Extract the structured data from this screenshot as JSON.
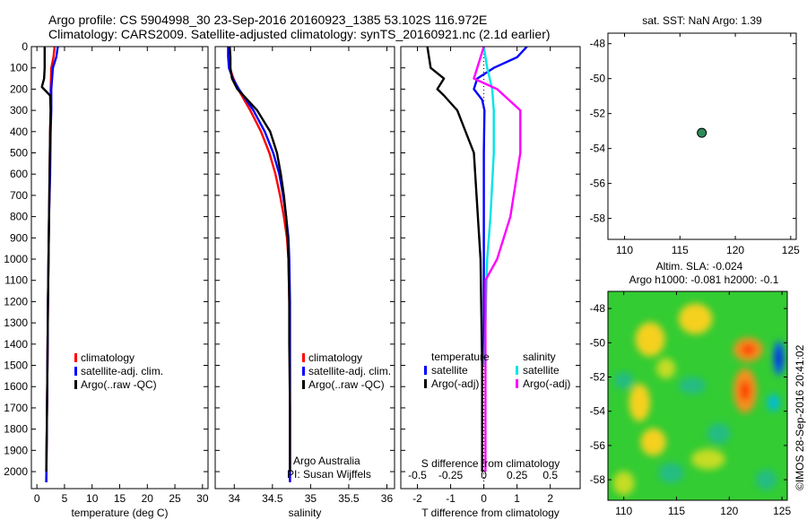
{
  "header": {
    "line1": "Argo profile: CS 5904998_30 23-Sep-2016 20160923_1385 53.102S 116.972E",
    "line2": "Climatology: CARS2009. Satellite-adjusted climatology: synTS_20160921.nc (2.1d earlier)"
  },
  "sst_label": "sat. SST: NaN  Argo: 1.39",
  "altim_label1": "Altim. SLA: -0.024",
  "altim_label2": "Argo h1000: -0.081  h2000: -0.1",
  "credit_vertical": "©IMOS 28-Sep-2016 20:41:02",
  "institution": "Argo Australia",
  "pi": "PI: Susan Wijffels",
  "colors": {
    "climatology": "#ff0000",
    "satellite": "#0000ff",
    "argo": "#000000",
    "s_satellite": "#00e5e5",
    "s_argo": "#ff00ff",
    "marker": "#2e8b57"
  },
  "legend_panel": [
    "climatology",
    "satellite-adj. clim.",
    "Argo(..raw -QC)"
  ],
  "legend_diff": {
    "temp_title": "temperature",
    "sal_title": "salinity",
    "satellite": "satellite",
    "argo": "Argo(-adj)"
  },
  "chart_data": [
    {
      "type": "line",
      "ylabel": "",
      "xlabel": "temperature (deg C)",
      "xlim": [
        -1,
        31
      ],
      "ylim": [
        2080,
        0
      ],
      "y_reversed": true,
      "xticks": [
        0,
        5,
        10,
        15,
        20,
        25,
        30
      ],
      "yticks": [
        0,
        100,
        200,
        300,
        400,
        500,
        600,
        700,
        800,
        900,
        1000,
        1100,
        1200,
        1300,
        1400,
        1500,
        1600,
        1700,
        1800,
        1900,
        2000
      ],
      "series": [
        {
          "name": "climatology",
          "color": "#ff0000",
          "x": [
            3.2,
            3.0,
            2.6,
            2.5,
            2.5,
            2.4,
            2.3,
            2.2,
            2.1,
            2.0,
            1.9,
            1.8,
            1.7
          ],
          "y": [
            0,
            50,
            100,
            200,
            300,
            400,
            600,
            800,
            1000,
            1200,
            1500,
            1800,
            2050
          ]
        },
        {
          "name": "satellite-adj. clim.",
          "color": "#0000ff",
          "x": [
            3.8,
            3.5,
            2.9,
            2.6,
            2.6,
            2.5,
            2.4,
            2.2,
            2.1,
            2.0,
            1.9,
            1.8,
            1.7
          ],
          "y": [
            0,
            50,
            100,
            200,
            300,
            400,
            600,
            800,
            1000,
            1200,
            1500,
            1800,
            2050
          ]
        },
        {
          "name": "Argo(..raw -QC)",
          "color": "#000000",
          "x": [
            1.4,
            1.4,
            1.4,
            1.3,
            0.9,
            2.4,
            2.5,
            2.4,
            2.3,
            2.2,
            2.1,
            2.0,
            1.9,
            1.8,
            1.7
          ],
          "y": [
            0,
            50,
            100,
            150,
            190,
            230,
            300,
            400,
            600,
            800,
            1000,
            1200,
            1500,
            1800,
            2000
          ]
        }
      ]
    },
    {
      "type": "line",
      "xlabel": "salinity",
      "xlim": [
        33.75,
        36.1
      ],
      "ylim": [
        2080,
        0
      ],
      "y_reversed": true,
      "xticks": [
        34,
        34.5,
        35,
        35.5,
        36
      ],
      "yticks": [
        0,
        100,
        200,
        300,
        400,
        500,
        600,
        700,
        800,
        900,
        1000,
        1100,
        1200,
        1300,
        1400,
        1500,
        1600,
        1700,
        1800,
        1900,
        2000
      ],
      "series": [
        {
          "name": "climatology",
          "color": "#ff0000",
          "x": [
            33.92,
            33.92,
            33.94,
            33.99,
            34.05,
            34.21,
            34.35,
            34.46,
            34.54,
            34.6,
            34.65,
            34.69,
            34.71,
            34.72,
            34.73,
            34.73
          ],
          "y": [
            0,
            50,
            100,
            150,
            200,
            300,
            400,
            500,
            600,
            700,
            800,
            900,
            1000,
            1200,
            1500,
            2050
          ]
        },
        {
          "name": "satellite-adj. clim.",
          "color": "#0000ff",
          "x": [
            33.92,
            33.92,
            33.93,
            33.98,
            34.06,
            34.25,
            34.4,
            34.51,
            34.59,
            34.64,
            34.68,
            34.71,
            34.72,
            34.73,
            34.73,
            34.73
          ],
          "y": [
            0,
            50,
            100,
            150,
            200,
            300,
            400,
            500,
            600,
            700,
            800,
            900,
            1000,
            1200,
            1500,
            2050
          ]
        },
        {
          "name": "Argo(..raw -QC)",
          "color": "#000000",
          "x": [
            33.94,
            33.95,
            33.95,
            33.97,
            34.04,
            34.12,
            34.3,
            34.47,
            34.56,
            34.61,
            34.65,
            34.68,
            34.7,
            34.71,
            34.72,
            34.72,
            34.73,
            34.73
          ],
          "y": [
            0,
            50,
            100,
            150,
            200,
            230,
            300,
            400,
            500,
            600,
            700,
            800,
            900,
            1000,
            1200,
            1400,
            1700,
            2000
          ]
        }
      ]
    },
    {
      "type": "line",
      "xlabel": "T difference from climatology",
      "top_axis_label": "S difference from climatology",
      "xlim": [
        -2.5,
        2.9
      ],
      "ylim": [
        2080,
        0
      ],
      "y_reversed": true,
      "xticks": [
        -2,
        -1,
        0,
        1,
        2
      ],
      "xticklabels_top": [
        "-0.5",
        "-0.25",
        "0",
        "0.25",
        "0.5"
      ],
      "yticks": [
        0,
        100,
        200,
        300,
        400,
        500,
        600,
        700,
        800,
        900,
        1000,
        1100,
        1200,
        1300,
        1400,
        1500,
        1600,
        1700,
        1800,
        1900,
        2000
      ],
      "series": [
        {
          "name": "temperature satellite",
          "color": "#0000ff",
          "x": [
            1.3,
            1.0,
            0.3,
            -0.2,
            -0.3,
            -0.05,
            0.02,
            0.0,
            0.0,
            0.0
          ],
          "y": [
            0,
            50,
            100,
            150,
            200,
            250,
            300,
            500,
            1000,
            1500
          ]
        },
        {
          "name": "temperature Argo(-adj)",
          "color": "#000000",
          "x": [
            -1.7,
            -1.6,
            -1.2,
            -1.4,
            -1.2,
            -0.8,
            -0.3,
            -0.1,
            -0.05,
            -0.05
          ],
          "y": [
            0,
            100,
            150,
            200,
            230,
            300,
            500,
            1000,
            1500,
            2000
          ]
        },
        {
          "name": "salinity satellite",
          "color": "#00e5e5",
          "x": [
            0.0,
            0.1,
            0.25,
            0.3,
            0.3,
            0.2,
            0.1,
            0.05,
            0.02
          ],
          "y": [
            0,
            100,
            200,
            300,
            500,
            800,
            1000,
            1300,
            1500
          ]
        },
        {
          "name": "salinity Argo(-adj)",
          "color": "#ff00ff",
          "x": [
            0.0,
            -0.3,
            0.4,
            1.1,
            1.1,
            0.8,
            0.4,
            0.05,
            0.05
          ],
          "y": [
            0,
            150,
            200,
            300,
            500,
            800,
            1000,
            1100,
            2000
          ]
        }
      ]
    },
    {
      "type": "scatter",
      "title": "sat. SST: NaN  Argo: 1.39",
      "xlim": [
        108.5,
        125.5
      ],
      "ylim": [
        -59.2,
        -47.4
      ],
      "xticks": [
        110,
        115,
        120,
        125
      ],
      "yticks": [
        -48,
        -50,
        -52,
        -54,
        -56,
        -58
      ],
      "points": [
        {
          "x": 116.972,
          "y": -53.102
        }
      ]
    },
    {
      "type": "heatmap",
      "title": "Altim. SLA: -0.024",
      "xlim": [
        108.5,
        125.5
      ],
      "ylim": [
        -59.2,
        -47.0
      ],
      "xticks": [
        110,
        115,
        120,
        125
      ],
      "yticks": [
        -48,
        -50,
        -52,
        -54,
        -56,
        -58
      ],
      "blobs": [
        {
          "x": 112.5,
          "y": -49.8,
          "rx": 1.4,
          "ry": 1.0,
          "value": 0.5
        },
        {
          "x": 116.8,
          "y": -48.6,
          "rx": 1.6,
          "ry": 0.9,
          "value": 0.4
        },
        {
          "x": 121.8,
          "y": -50.4,
          "rx": 1.4,
          "ry": 0.7,
          "value": 0.6
        },
        {
          "x": 121.5,
          "y": -52.8,
          "rx": 1.1,
          "ry": 1.3,
          "value": 0.7
        },
        {
          "x": 111.5,
          "y": -53.5,
          "rx": 1.0,
          "ry": 1.1,
          "value": 0.5
        },
        {
          "x": 112.8,
          "y": -55.8,
          "rx": 1.2,
          "ry": 0.8,
          "value": 0.4
        },
        {
          "x": 118.0,
          "y": -56.8,
          "rx": 1.6,
          "ry": 0.6,
          "value": 0.3
        },
        {
          "x": 110.0,
          "y": -58.2,
          "rx": 1.0,
          "ry": 0.7,
          "value": 0.3
        },
        {
          "x": 124.7,
          "y": -50.9,
          "rx": 0.5,
          "ry": 1.0,
          "value": -1.0
        },
        {
          "x": 124.2,
          "y": -53.5,
          "rx": 0.6,
          "ry": 0.5,
          "value": -0.6
        },
        {
          "x": 110.0,
          "y": -52.2,
          "rx": 0.9,
          "ry": 0.5,
          "value": -0.4
        },
        {
          "x": 116.5,
          "y": -52.5,
          "rx": 1.3,
          "ry": 0.5,
          "value": -0.3
        },
        {
          "x": 119.0,
          "y": -55.3,
          "rx": 1.1,
          "ry": 0.6,
          "value": -0.3
        },
        {
          "x": 114.5,
          "y": -57.6,
          "rx": 1.2,
          "ry": 0.6,
          "value": -0.3
        },
        {
          "x": 123.5,
          "y": -58.0,
          "rx": 1.0,
          "ry": 0.6,
          "value": -0.4
        },
        {
          "x": 114.0,
          "y": -51.5,
          "rx": 0.9,
          "ry": 0.6,
          "value": 0.25
        }
      ]
    }
  ]
}
